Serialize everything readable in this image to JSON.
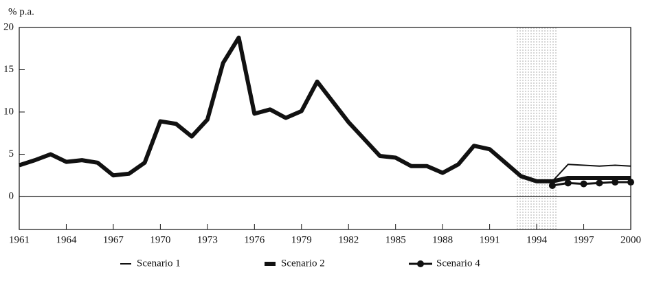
{
  "chart_data": {
    "type": "line",
    "y_axis_label": "% p.a.",
    "x": [
      1961,
      1962,
      1963,
      1964,
      1965,
      1966,
      1967,
      1968,
      1969,
      1970,
      1971,
      1972,
      1973,
      1974,
      1975,
      1976,
      1977,
      1978,
      1979,
      1980,
      1981,
      1982,
      1983,
      1984,
      1985,
      1986,
      1987,
      1988,
      1989,
      1990,
      1991,
      1992,
      1993,
      1994,
      1995,
      1996,
      1997,
      1998,
      1999,
      2000
    ],
    "series": [
      {
        "name": "Scenario 1",
        "color": "#111111",
        "style": "thin",
        "values": [
          null,
          null,
          null,
          null,
          null,
          null,
          null,
          null,
          null,
          null,
          null,
          null,
          null,
          null,
          null,
          null,
          null,
          null,
          null,
          null,
          null,
          null,
          null,
          null,
          null,
          null,
          null,
          null,
          null,
          null,
          null,
          null,
          null,
          null,
          1.8,
          3.8,
          3.7,
          3.6,
          3.7,
          3.6
        ]
      },
      {
        "name": "Scenario 2",
        "color": "#111111",
        "style": "thick",
        "values": [
          3.7,
          4.3,
          5.0,
          4.1,
          4.3,
          4.0,
          2.5,
          2.7,
          4.0,
          8.9,
          8.6,
          7.1,
          9.1,
          15.8,
          18.8,
          9.8,
          10.3,
          9.3,
          10.1,
          13.6,
          11.2,
          8.8,
          6.8,
          4.8,
          4.6,
          3.6,
          3.6,
          2.8,
          3.8,
          6.0,
          5.6,
          4.0,
          2.4,
          1.8,
          1.8,
          2.2,
          2.2,
          2.2,
          2.2,
          2.2
        ]
      },
      {
        "name": "Scenario 4",
        "color": "#111111",
        "style": "marker",
        "values": [
          null,
          null,
          null,
          null,
          null,
          null,
          null,
          null,
          null,
          null,
          null,
          null,
          null,
          null,
          null,
          null,
          null,
          null,
          null,
          null,
          null,
          null,
          null,
          null,
          null,
          null,
          null,
          null,
          null,
          null,
          null,
          null,
          null,
          null,
          1.3,
          1.6,
          1.5,
          1.6,
          1.7,
          1.7
        ]
      }
    ],
    "xlim": [
      1961,
      2000
    ],
    "xticks": [
      1961,
      1964,
      1967,
      1970,
      1973,
      1976,
      1979,
      1982,
      1985,
      1988,
      1991,
      1994,
      1997,
      2000
    ],
    "ylim": [
      -3.9,
      20
    ],
    "yticks": [
      0,
      5,
      10,
      15,
      20
    ],
    "grid": false,
    "legend": "bottom"
  }
}
